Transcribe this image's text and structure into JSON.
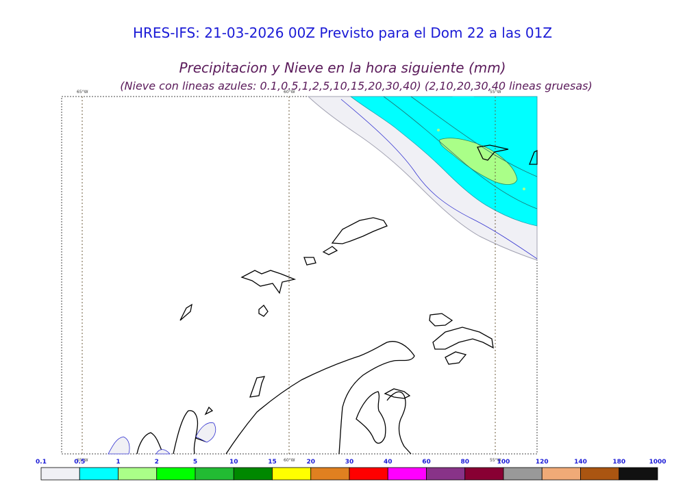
{
  "header": {
    "title": "HRES-IFS: 21-03-2026 00Z Previsto para el Dom 22 a las 01Z",
    "subtitle": "Precipitacion y Nieve en la hora siguiente (mm)",
    "note": "(Nieve con lineas azules: 0.1,0.5,1,2,5,10,15,20,30,40)  (2,10,20,30,40 lineas gruesas)"
  },
  "map": {
    "meridian_labels": [
      "65°W",
      "60°W",
      "55°W"
    ],
    "bottom_meridian_labels": [
      "65°W",
      "60°W",
      "55°W"
    ],
    "colors": {
      "coast": "#000000",
      "snow_line": "#3030d0",
      "gridline": "#6b5a3a"
    }
  },
  "legend": {
    "ticks": [
      "0.1",
      "0.5",
      "1",
      "2",
      "5",
      "10",
      "15",
      "20",
      "30",
      "40",
      "60",
      "80",
      "100",
      "120",
      "140",
      "180",
      "1000"
    ],
    "colors": [
      "#f0f0f5",
      "#00ffff",
      "#aaff88",
      "#00ff00",
      "#22bb33",
      "#008800",
      "#ffff00",
      "#e08020",
      "#ff0000",
      "#ff00ff",
      "#883388",
      "#880033",
      "#999999",
      "#f0aa77",
      "#aa5511",
      "#111111"
    ]
  }
}
